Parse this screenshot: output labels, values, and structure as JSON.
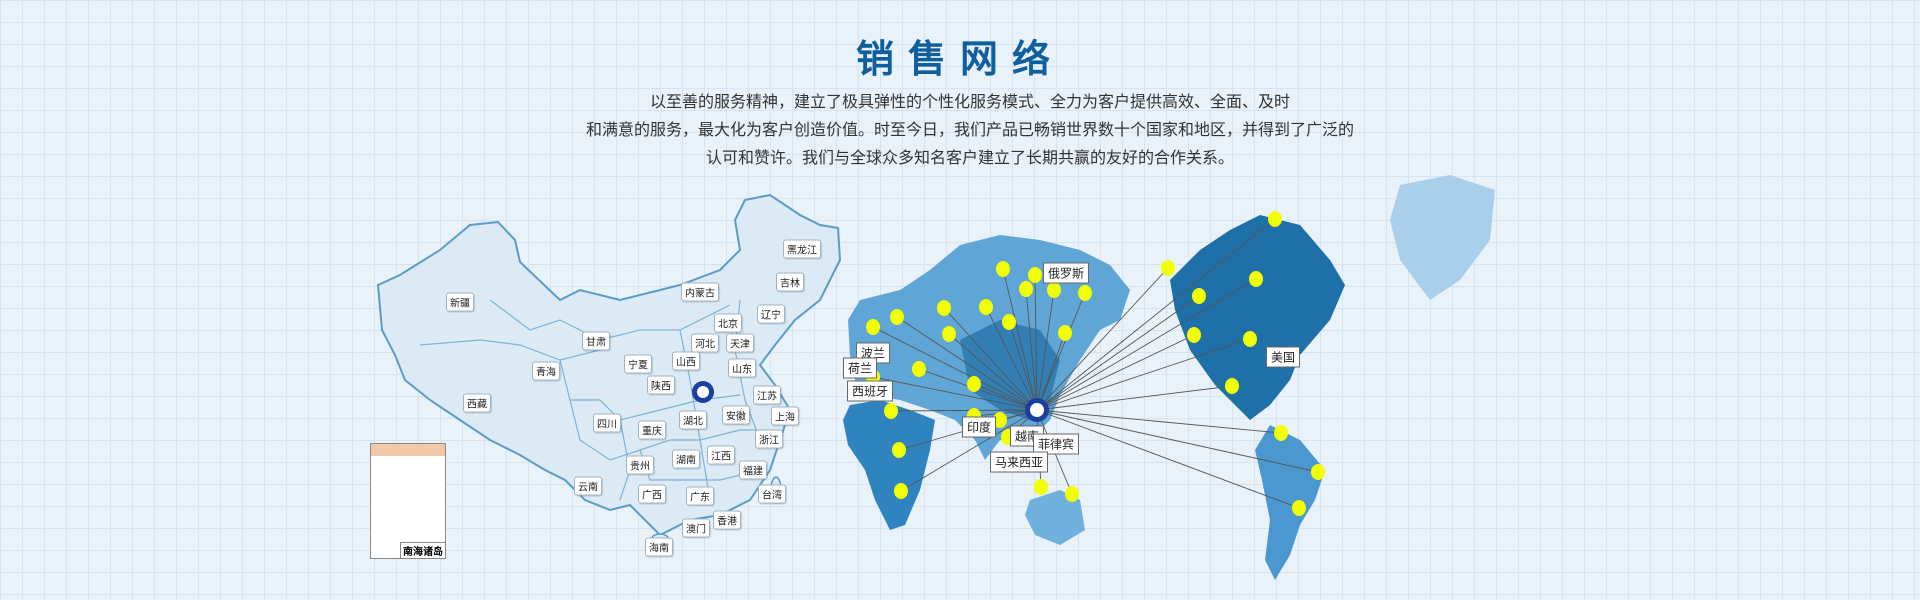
{
  "header": {
    "title": "销售网络",
    "intro_lines": [
      "以至善的服务精神，建立了极具弹性的个性化服务模式、全力为客户提供高效、全面、及时",
      "和满意的服务，最大化为客户创造价值。时至今日，我们产品已畅销世界数十个国家和地区，并得到了广泛的",
      "认可和赞许。我们与全球众多知名客户建立了长期共赢的友好的合作关系。"
    ]
  },
  "china_map": {
    "provinces": [
      "新疆",
      "西藏",
      "青海",
      "甘肃",
      "宁夏",
      "内蒙古",
      "黑龙江",
      "吉林",
      "辽宁",
      "北京",
      "河北",
      "天津",
      "山西",
      "山东",
      "陕西",
      "江苏",
      "上海",
      "安徽",
      "湖北",
      "四川",
      "重庆",
      "浙江",
      "江西",
      "湖南",
      "贵州",
      "福建",
      "云南",
      "广西",
      "广东",
      "台湾",
      "香港",
      "澳门",
      "海南"
    ],
    "inset_label": "南海诸岛",
    "fill_color": "#dbeaf5",
    "border_color": "#5b9cc6"
  },
  "world_map": {
    "countries": [
      "俄罗斯",
      "波兰",
      "荷兰",
      "西班牙",
      "印度",
      "越南",
      "菲律宾",
      "马来西亚",
      "美国"
    ],
    "marker_color": "#f2ff00",
    "land_color": "#5fa6d6",
    "dark_land_color": "#1f6fa8"
  },
  "logo": {
    "color": "#1a3fa0"
  }
}
